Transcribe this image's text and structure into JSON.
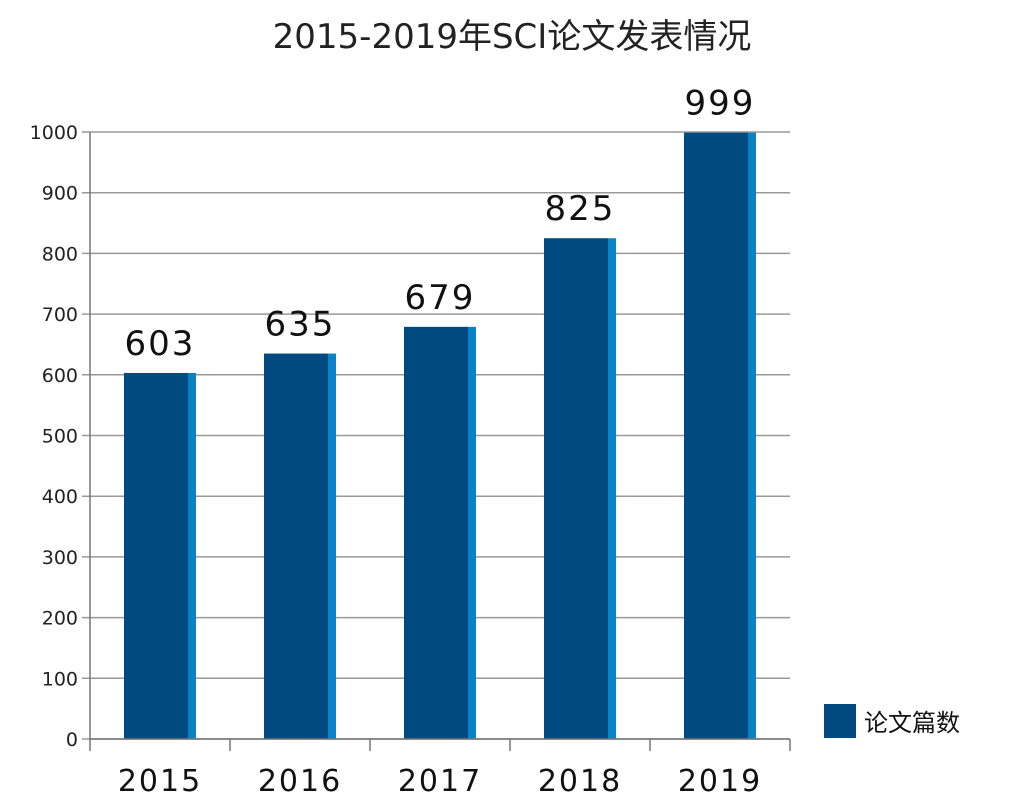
{
  "chart_data": {
    "type": "bar",
    "title": "2015-2019年SCI论文发表情况",
    "categories": [
      "2015",
      "2016",
      "2017",
      "2018",
      "2019"
    ],
    "series": [
      {
        "name": "论文篇数",
        "values": [
          603,
          635,
          679,
          825,
          999
        ]
      }
    ],
    "ylim": [
      0,
      1000
    ],
    "yticks": [
      0,
      100,
      200,
      300,
      400,
      500,
      600,
      700,
      800,
      900,
      1000
    ],
    "grid": true,
    "legend_position": "bottom-right"
  },
  "colors": {
    "bar": "#004A80",
    "bar_side": "#0A82C8",
    "grid": "#999999",
    "axis": "#777777"
  }
}
